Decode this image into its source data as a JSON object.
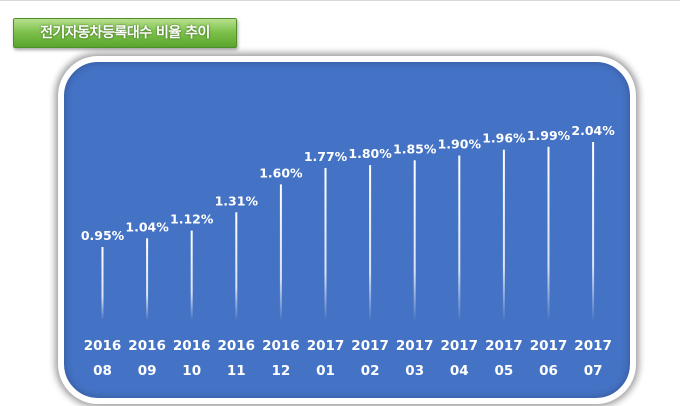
{
  "header": {
    "title": "전기자동차등록대수 비율 추이"
  },
  "colors": {
    "background": "#4472c4",
    "badge": "#7cc04a",
    "text": "#ffffff"
  },
  "chart_data": {
    "type": "bar",
    "title": "전기자동차등록대수 비율 추이",
    "categories": [
      {
        "year": "2016",
        "month": "08"
      },
      {
        "year": "2016",
        "month": "09"
      },
      {
        "year": "2016",
        "month": "10"
      },
      {
        "year": "2016",
        "month": "11"
      },
      {
        "year": "2016",
        "month": "12"
      },
      {
        "year": "2017",
        "month": "01"
      },
      {
        "year": "2017",
        "month": "02"
      },
      {
        "year": "2017",
        "month": "03"
      },
      {
        "year": "2017",
        "month": "04"
      },
      {
        "year": "2017",
        "month": "05"
      },
      {
        "year": "2017",
        "month": "06"
      },
      {
        "year": "2017",
        "month": "07"
      }
    ],
    "values": [
      0.95,
      1.04,
      1.12,
      1.31,
      1.6,
      1.77,
      1.8,
      1.85,
      1.9,
      1.96,
      1.99,
      2.04
    ],
    "labels": [
      "0.95%",
      "1.04%",
      "1.12%",
      "1.31%",
      "1.60%",
      "1.77%",
      "1.80%",
      "1.85%",
      "1.90%",
      "1.96%",
      "1.99%",
      "2.04%"
    ],
    "xlabel": "",
    "ylabel": "",
    "ylim": [
      0,
      2.2
    ],
    "grid": false,
    "legend": "none"
  }
}
